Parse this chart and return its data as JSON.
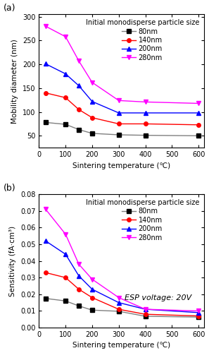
{
  "panel_a": {
    "title": "Initial monodisperse particle size",
    "xlabel": "Sintering temperature (℃)",
    "ylabel": "Mobility diameter (nm)",
    "xlim": [
      0,
      620
    ],
    "ylim": [
      25,
      305
    ],
    "yticks": [
      50,
      100,
      150,
      200,
      250,
      300
    ],
    "xticks": [
      0,
      100,
      200,
      300,
      400,
      500,
      600
    ],
    "series": [
      {
        "label": "80nm",
        "color": "#808080",
        "marker": "s",
        "markercolor": "black",
        "x": [
          25,
          100,
          150,
          200,
          300,
          400,
          600
        ],
        "y": [
          78,
          74,
          63,
          55,
          52,
          51,
          50
        ]
      },
      {
        "label": "140nm",
        "color": "#ff0000",
        "marker": "o",
        "markercolor": "#ff0000",
        "x": [
          25,
          100,
          150,
          200,
          300,
          400,
          600
        ],
        "y": [
          140,
          130,
          105,
          88,
          75,
          75,
          73
        ]
      },
      {
        "label": "200nm",
        "color": "#0000ff",
        "marker": "^",
        "markercolor": "#0000ff",
        "x": [
          25,
          100,
          150,
          200,
          300,
          400,
          600
        ],
        "y": [
          201,
          180,
          155,
          122,
          98,
          98,
          98
        ]
      },
      {
        "label": "280nm",
        "color": "#ff00ff",
        "marker": "v",
        "markercolor": "#ff00ff",
        "x": [
          25,
          100,
          150,
          200,
          300,
          400,
          600
        ],
        "y": [
          280,
          258,
          207,
          162,
          124,
          121,
          118
        ]
      }
    ]
  },
  "panel_b": {
    "title": "Initial monodisperse particle size",
    "xlabel": "Sintering temperature (℃)",
    "ylabel": "Sensitivity (fA·cm³)",
    "annotation": "ESP voltage: 20V",
    "xlim": [
      0,
      620
    ],
    "ylim": [
      0,
      0.08
    ],
    "yticks": [
      0.0,
      0.01,
      0.02,
      0.03,
      0.04,
      0.05,
      0.06,
      0.07,
      0.08
    ],
    "xticks": [
      0,
      100,
      200,
      300,
      400,
      500,
      600
    ],
    "series": [
      {
        "label": "80nm",
        "color": "#808080",
        "marker": "s",
        "markercolor": "black",
        "x": [
          25,
          100,
          150,
          200,
          300,
          400,
          600
        ],
        "y": [
          0.0175,
          0.016,
          0.013,
          0.0105,
          0.0098,
          0.0068,
          0.0063
        ]
      },
      {
        "label": "140nm",
        "color": "#ff0000",
        "marker": "o",
        "markercolor": "#ff0000",
        "x": [
          25,
          100,
          150,
          200,
          300,
          400,
          600
        ],
        "y": [
          0.033,
          0.03,
          0.023,
          0.018,
          0.011,
          0.008,
          0.007
        ]
      },
      {
        "label": "200nm",
        "color": "#0000ff",
        "marker": "^",
        "markercolor": "#0000ff",
        "x": [
          25,
          100,
          150,
          200,
          300,
          400,
          600
        ],
        "y": [
          0.052,
          0.044,
          0.031,
          0.023,
          0.015,
          0.011,
          0.009
        ]
      },
      {
        "label": "280nm",
        "color": "#ff00ff",
        "marker": "v",
        "markercolor": "#ff00ff",
        "x": [
          25,
          100,
          150,
          200,
          300,
          400,
          600
        ],
        "y": [
          0.071,
          0.056,
          0.038,
          0.029,
          0.018,
          0.011,
          0.01
        ]
      }
    ]
  },
  "background_color": "#ffffff",
  "label_fontsize": 7.5,
  "tick_fontsize": 7,
  "legend_fontsize": 7,
  "title_fontsize": 7,
  "panel_label_fontsize": 9
}
